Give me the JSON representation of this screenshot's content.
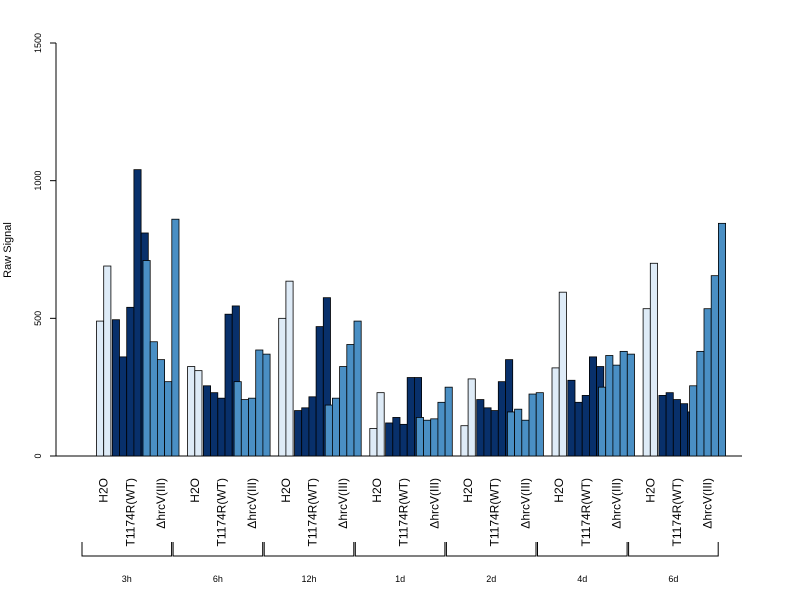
{
  "chart_data": {
    "type": "bar",
    "ylabel": "Raw Signal",
    "ylim": [
      0,
      1500
    ],
    "yticks": [
      "0",
      "500",
      "1000",
      "1500"
    ],
    "conditions": [
      "H2O",
      "T1174R(WT)",
      "ΔhrcV(III)"
    ],
    "colors": {
      "H2O": "#deebf7",
      "T1174R(WT)": "#08306b",
      "ΔhrcV(III)": "#4a8fc4"
    },
    "groups": [
      {
        "time": "3h",
        "H2O": [
          490,
          690
        ],
        "T1174R(WT)": [
          495,
          360,
          540,
          1040,
          810
        ],
        "ΔhrcV(III)": [
          710,
          415,
          350,
          270,
          860
        ]
      },
      {
        "time": "6h",
        "H2O": [
          325,
          310
        ],
        "T1174R(WT)": [
          255,
          230,
          210,
          515,
          545
        ],
        "ΔhrcV(III)": [
          270,
          205,
          210,
          385,
          370
        ]
      },
      {
        "time": "12h",
        "H2O": [
          500,
          635
        ],
        "T1174R(WT)": [
          165,
          175,
          215,
          470,
          575
        ],
        "ΔhrcV(III)": [
          185,
          210,
          325,
          405,
          490
        ]
      },
      {
        "time": "1d",
        "H2O": [
          100,
          230
        ],
        "T1174R(WT)": [
          120,
          140,
          115,
          285,
          285
        ],
        "ΔhrcV(III)": [
          140,
          130,
          135,
          195,
          250
        ]
      },
      {
        "time": "2d",
        "H2O": [
          110,
          280
        ],
        "T1174R(WT)": [
          205,
          175,
          165,
          270,
          350
        ],
        "ΔhrcV(III)": [
          160,
          170,
          130,
          225,
          230
        ]
      },
      {
        "time": "4d",
        "H2O": [
          320,
          595
        ],
        "T1174R(WT)": [
          275,
          195,
          220,
          360,
          325
        ],
        "ΔhrcV(III)": [
          250,
          365,
          330,
          380,
          370
        ]
      },
      {
        "time": "6d",
        "H2O": [
          535,
          700
        ],
        "T1174R(WT)": [
          220,
          230,
          205,
          190,
          160
        ],
        "ΔhrcV(III)": [
          255,
          380,
          535,
          655,
          845
        ]
      }
    ]
  }
}
